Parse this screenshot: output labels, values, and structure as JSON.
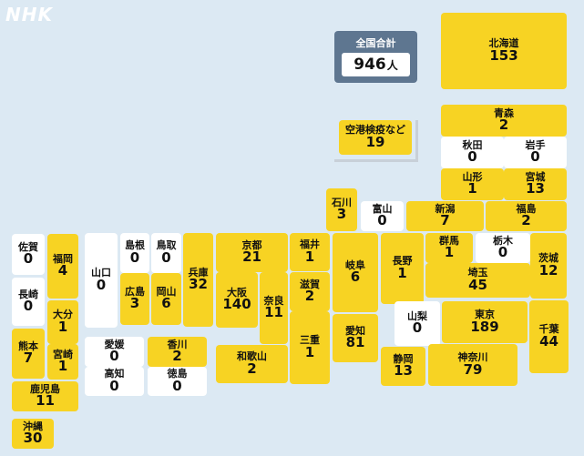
{
  "brand": "NHK",
  "total": {
    "label": "全国合計",
    "value": "946",
    "unit": "人"
  },
  "colors": {
    "background": "#dce9f3",
    "yellow": "#f7d323",
    "white": "#ffffff",
    "total_box": "#5e7690"
  },
  "prefectures": [
    {
      "id": "hokkaido",
      "name": "北海道",
      "value": "153"
    },
    {
      "id": "aomori",
      "name": "青森",
      "value": "2"
    },
    {
      "id": "airport",
      "name": "空港検疫など",
      "value": "19"
    },
    {
      "id": "akita",
      "name": "秋田",
      "value": "0"
    },
    {
      "id": "iwate",
      "name": "岩手",
      "value": "0"
    },
    {
      "id": "yamagata",
      "name": "山形",
      "value": "1"
    },
    {
      "id": "miyagi",
      "name": "宮城",
      "value": "13"
    },
    {
      "id": "ishikawa",
      "name": "石川",
      "value": "3"
    },
    {
      "id": "toyama",
      "name": "富山",
      "value": "0"
    },
    {
      "id": "niigata",
      "name": "新潟",
      "value": "7"
    },
    {
      "id": "fukushima",
      "name": "福島",
      "value": "2"
    },
    {
      "id": "saga",
      "name": "佐賀",
      "value": "0"
    },
    {
      "id": "fukuoka",
      "name": "福岡",
      "value": "4"
    },
    {
      "id": "nagasaki",
      "name": "長崎",
      "value": "0"
    },
    {
      "id": "oita",
      "name": "大分",
      "value": "1"
    },
    {
      "id": "kumamoto",
      "name": "熊本",
      "value": "7"
    },
    {
      "id": "miyazaki",
      "name": "宮崎",
      "value": "1"
    },
    {
      "id": "kagoshima",
      "name": "鹿児島",
      "value": "11"
    },
    {
      "id": "okinawa",
      "name": "沖縄",
      "value": "30"
    },
    {
      "id": "yamaguchi",
      "name": "山口",
      "value": "0"
    },
    {
      "id": "shimane",
      "name": "島根",
      "value": "0"
    },
    {
      "id": "tottori",
      "name": "鳥取",
      "value": "0"
    },
    {
      "id": "hiroshima",
      "name": "広島",
      "value": "3"
    },
    {
      "id": "okayama",
      "name": "岡山",
      "value": "6"
    },
    {
      "id": "hyogo",
      "name": "兵庫",
      "value": "32"
    },
    {
      "id": "kyoto",
      "name": "京都",
      "value": "21"
    },
    {
      "id": "fukui",
      "name": "福井",
      "value": "1"
    },
    {
      "id": "osaka",
      "name": "大阪",
      "value": "140"
    },
    {
      "id": "nara",
      "name": "奈良",
      "value": "11"
    },
    {
      "id": "shiga",
      "name": "滋賀",
      "value": "2"
    },
    {
      "id": "mie",
      "name": "三重",
      "value": "1"
    },
    {
      "id": "wakayama",
      "name": "和歌山",
      "value": "2"
    },
    {
      "id": "gifu",
      "name": "岐阜",
      "value": "6"
    },
    {
      "id": "aichi",
      "name": "愛知",
      "value": "81"
    },
    {
      "id": "nagano",
      "name": "長野",
      "value": "1"
    },
    {
      "id": "gunma",
      "name": "群馬",
      "value": "1"
    },
    {
      "id": "tochigi",
      "name": "栃木",
      "value": "0"
    },
    {
      "id": "saitama",
      "name": "埼玉",
      "value": "45"
    },
    {
      "id": "ibaraki",
      "name": "茨城",
      "value": "12"
    },
    {
      "id": "yamanashi",
      "name": "山梨",
      "value": "0"
    },
    {
      "id": "tokyo",
      "name": "東京",
      "value": "189"
    },
    {
      "id": "chiba",
      "name": "千葉",
      "value": "44"
    },
    {
      "id": "shizuoka",
      "name": "静岡",
      "value": "13"
    },
    {
      "id": "kanagawa",
      "name": "神奈川",
      "value": "79"
    },
    {
      "id": "ehime",
      "name": "愛媛",
      "value": "0"
    },
    {
      "id": "kagawa",
      "name": "香川",
      "value": "2"
    },
    {
      "id": "kochi",
      "name": "高知",
      "value": "0"
    },
    {
      "id": "tokushima",
      "name": "徳島",
      "value": "0"
    }
  ]
}
